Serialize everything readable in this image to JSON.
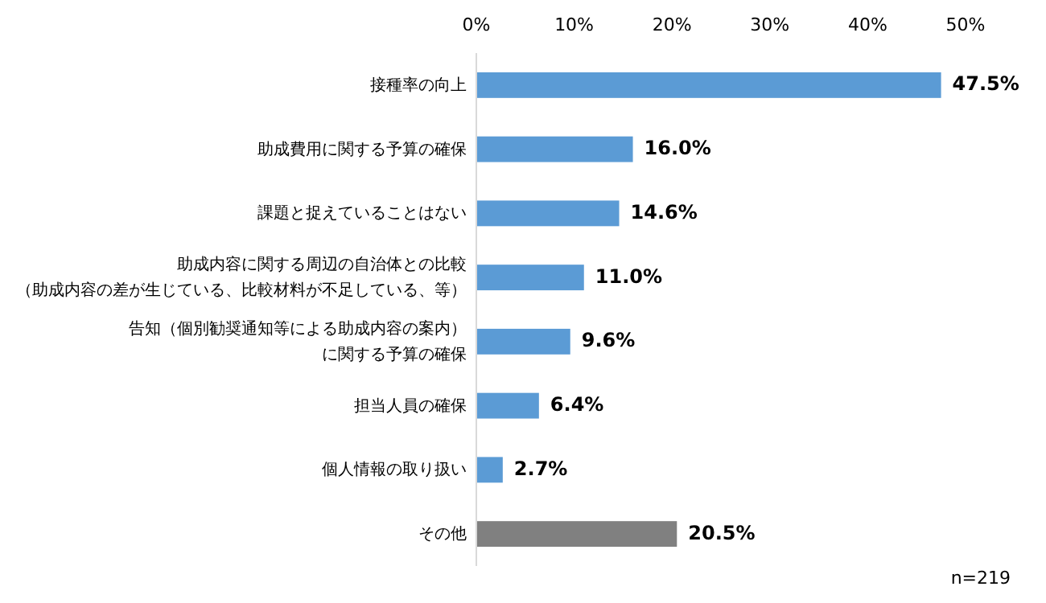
{
  "chart_data": {
    "type": "bar",
    "orientation": "horizontal",
    "categories": [
      "接種率の向上",
      "助成費用に関する予算の確保",
      "課題と捉えていることはない",
      "助成内容に関する周辺の自治体との比較（助成内容の差が生じている、比較材料が不足している、等）",
      "告知（個別勧奨通知等による助成内容の案内）に関する予算の確保",
      "担当人員の確保",
      "個人情報の取り扱い",
      "その他"
    ],
    "values": [
      47.5,
      16.0,
      14.6,
      11.0,
      9.6,
      6.4,
      2.7,
      20.5
    ],
    "colors": [
      "#5b9bd5",
      "#5b9bd5",
      "#5b9bd5",
      "#5b9bd5",
      "#5b9bd5",
      "#5b9bd5",
      "#5b9bd5",
      "#808080"
    ],
    "value_labels": [
      "47.5%",
      "16.0%",
      "14.6%",
      "11.0%",
      "9.6%",
      "6.4%",
      "2.7%",
      "20.5%"
    ],
    "xlim": [
      0,
      50
    ],
    "xticks": [
      {
        "value": 0,
        "label": "0%"
      },
      {
        "value": 10,
        "label": "10%"
      },
      {
        "value": 20,
        "label": "20%"
      },
      {
        "value": 30,
        "label": "30%"
      },
      {
        "value": 40,
        "label": "40%"
      },
      {
        "value": 50,
        "label": "50%"
      }
    ],
    "grid": false,
    "annotations": [
      "n=219"
    ]
  }
}
